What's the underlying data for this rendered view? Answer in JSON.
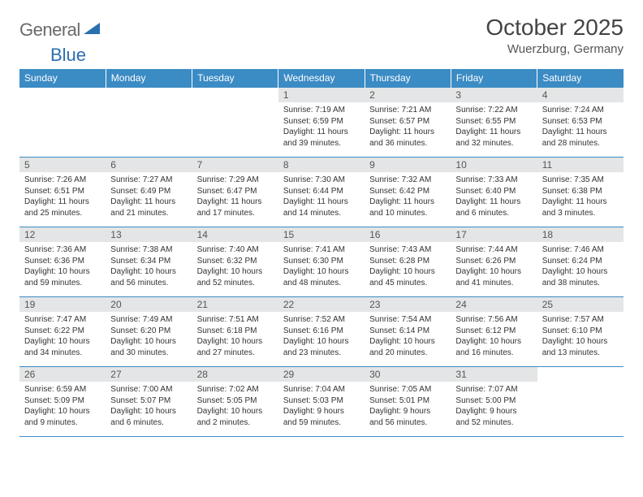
{
  "logo": {
    "text1": "General",
    "text2": "Blue"
  },
  "title": "October 2025",
  "location": "Wuerzburg, Germany",
  "colors": {
    "header_bg": "#3b8bc4",
    "header_text": "#ffffff",
    "daynum_bg": "#e4e5e6",
    "border": "#3b8bc4",
    "body_text": "#333333",
    "logo_gray": "#6a6a6a",
    "logo_blue": "#2a6fb0"
  },
  "columns": [
    "Sunday",
    "Monday",
    "Tuesday",
    "Wednesday",
    "Thursday",
    "Friday",
    "Saturday"
  ],
  "weeks": [
    [
      {
        "n": "",
        "sr": "",
        "ss": "",
        "dl": ""
      },
      {
        "n": "",
        "sr": "",
        "ss": "",
        "dl": ""
      },
      {
        "n": "",
        "sr": "",
        "ss": "",
        "dl": ""
      },
      {
        "n": "1",
        "sr": "Sunrise: 7:19 AM",
        "ss": "Sunset: 6:59 PM",
        "dl": "Daylight: 11 hours and 39 minutes."
      },
      {
        "n": "2",
        "sr": "Sunrise: 7:21 AM",
        "ss": "Sunset: 6:57 PM",
        "dl": "Daylight: 11 hours and 36 minutes."
      },
      {
        "n": "3",
        "sr": "Sunrise: 7:22 AM",
        "ss": "Sunset: 6:55 PM",
        "dl": "Daylight: 11 hours and 32 minutes."
      },
      {
        "n": "4",
        "sr": "Sunrise: 7:24 AM",
        "ss": "Sunset: 6:53 PM",
        "dl": "Daylight: 11 hours and 28 minutes."
      }
    ],
    [
      {
        "n": "5",
        "sr": "Sunrise: 7:26 AM",
        "ss": "Sunset: 6:51 PM",
        "dl": "Daylight: 11 hours and 25 minutes."
      },
      {
        "n": "6",
        "sr": "Sunrise: 7:27 AM",
        "ss": "Sunset: 6:49 PM",
        "dl": "Daylight: 11 hours and 21 minutes."
      },
      {
        "n": "7",
        "sr": "Sunrise: 7:29 AM",
        "ss": "Sunset: 6:47 PM",
        "dl": "Daylight: 11 hours and 17 minutes."
      },
      {
        "n": "8",
        "sr": "Sunrise: 7:30 AM",
        "ss": "Sunset: 6:44 PM",
        "dl": "Daylight: 11 hours and 14 minutes."
      },
      {
        "n": "9",
        "sr": "Sunrise: 7:32 AM",
        "ss": "Sunset: 6:42 PM",
        "dl": "Daylight: 11 hours and 10 minutes."
      },
      {
        "n": "10",
        "sr": "Sunrise: 7:33 AM",
        "ss": "Sunset: 6:40 PM",
        "dl": "Daylight: 11 hours and 6 minutes."
      },
      {
        "n": "11",
        "sr": "Sunrise: 7:35 AM",
        "ss": "Sunset: 6:38 PM",
        "dl": "Daylight: 11 hours and 3 minutes."
      }
    ],
    [
      {
        "n": "12",
        "sr": "Sunrise: 7:36 AM",
        "ss": "Sunset: 6:36 PM",
        "dl": "Daylight: 10 hours and 59 minutes."
      },
      {
        "n": "13",
        "sr": "Sunrise: 7:38 AM",
        "ss": "Sunset: 6:34 PM",
        "dl": "Daylight: 10 hours and 56 minutes."
      },
      {
        "n": "14",
        "sr": "Sunrise: 7:40 AM",
        "ss": "Sunset: 6:32 PM",
        "dl": "Daylight: 10 hours and 52 minutes."
      },
      {
        "n": "15",
        "sr": "Sunrise: 7:41 AM",
        "ss": "Sunset: 6:30 PM",
        "dl": "Daylight: 10 hours and 48 minutes."
      },
      {
        "n": "16",
        "sr": "Sunrise: 7:43 AM",
        "ss": "Sunset: 6:28 PM",
        "dl": "Daylight: 10 hours and 45 minutes."
      },
      {
        "n": "17",
        "sr": "Sunrise: 7:44 AM",
        "ss": "Sunset: 6:26 PM",
        "dl": "Daylight: 10 hours and 41 minutes."
      },
      {
        "n": "18",
        "sr": "Sunrise: 7:46 AM",
        "ss": "Sunset: 6:24 PM",
        "dl": "Daylight: 10 hours and 38 minutes."
      }
    ],
    [
      {
        "n": "19",
        "sr": "Sunrise: 7:47 AM",
        "ss": "Sunset: 6:22 PM",
        "dl": "Daylight: 10 hours and 34 minutes."
      },
      {
        "n": "20",
        "sr": "Sunrise: 7:49 AM",
        "ss": "Sunset: 6:20 PM",
        "dl": "Daylight: 10 hours and 30 minutes."
      },
      {
        "n": "21",
        "sr": "Sunrise: 7:51 AM",
        "ss": "Sunset: 6:18 PM",
        "dl": "Daylight: 10 hours and 27 minutes."
      },
      {
        "n": "22",
        "sr": "Sunrise: 7:52 AM",
        "ss": "Sunset: 6:16 PM",
        "dl": "Daylight: 10 hours and 23 minutes."
      },
      {
        "n": "23",
        "sr": "Sunrise: 7:54 AM",
        "ss": "Sunset: 6:14 PM",
        "dl": "Daylight: 10 hours and 20 minutes."
      },
      {
        "n": "24",
        "sr": "Sunrise: 7:56 AM",
        "ss": "Sunset: 6:12 PM",
        "dl": "Daylight: 10 hours and 16 minutes."
      },
      {
        "n": "25",
        "sr": "Sunrise: 7:57 AM",
        "ss": "Sunset: 6:10 PM",
        "dl": "Daylight: 10 hours and 13 minutes."
      }
    ],
    [
      {
        "n": "26",
        "sr": "Sunrise: 6:59 AM",
        "ss": "Sunset: 5:09 PM",
        "dl": "Daylight: 10 hours and 9 minutes."
      },
      {
        "n": "27",
        "sr": "Sunrise: 7:00 AM",
        "ss": "Sunset: 5:07 PM",
        "dl": "Daylight: 10 hours and 6 minutes."
      },
      {
        "n": "28",
        "sr": "Sunrise: 7:02 AM",
        "ss": "Sunset: 5:05 PM",
        "dl": "Daylight: 10 hours and 2 minutes."
      },
      {
        "n": "29",
        "sr": "Sunrise: 7:04 AM",
        "ss": "Sunset: 5:03 PM",
        "dl": "Daylight: 9 hours and 59 minutes."
      },
      {
        "n": "30",
        "sr": "Sunrise: 7:05 AM",
        "ss": "Sunset: 5:01 PM",
        "dl": "Daylight: 9 hours and 56 minutes."
      },
      {
        "n": "31",
        "sr": "Sunrise: 7:07 AM",
        "ss": "Sunset: 5:00 PM",
        "dl": "Daylight: 9 hours and 52 minutes."
      },
      {
        "n": "",
        "sr": "",
        "ss": "",
        "dl": ""
      }
    ]
  ]
}
